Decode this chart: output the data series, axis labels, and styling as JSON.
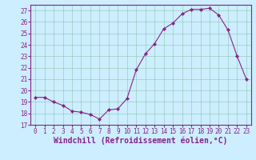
{
  "x": [
    0,
    1,
    2,
    3,
    4,
    5,
    6,
    7,
    8,
    9,
    10,
    11,
    12,
    13,
    14,
    15,
    16,
    17,
    18,
    19,
    20,
    21,
    22,
    23
  ],
  "y": [
    19.4,
    19.4,
    19.0,
    18.7,
    18.2,
    18.1,
    17.9,
    17.5,
    18.3,
    18.4,
    19.3,
    21.8,
    23.2,
    24.1,
    25.4,
    25.9,
    26.7,
    27.1,
    27.1,
    27.2,
    26.6,
    25.3,
    23.0,
    21.0
  ],
  "line_color": "#882288",
  "marker": "D",
  "marker_size": 2.2,
  "bg_color": "#cceeff",
  "grid_color": "#99ccbb",
  "xlabel": "Windchill (Refroidissement éolien,°C)",
  "ylim": [
    17,
    27.5
  ],
  "xlim": [
    -0.5,
    23.5
  ],
  "yticks": [
    17,
    18,
    19,
    20,
    21,
    22,
    23,
    24,
    25,
    26,
    27
  ],
  "xticks": [
    0,
    1,
    2,
    3,
    4,
    5,
    6,
    7,
    8,
    9,
    10,
    11,
    12,
    13,
    14,
    15,
    16,
    17,
    18,
    19,
    20,
    21,
    22,
    23
  ],
  "tick_color": "#882288",
  "tick_fontsize": 5.5,
  "xlabel_fontsize": 7.0,
  "spine_color": "#882288"
}
